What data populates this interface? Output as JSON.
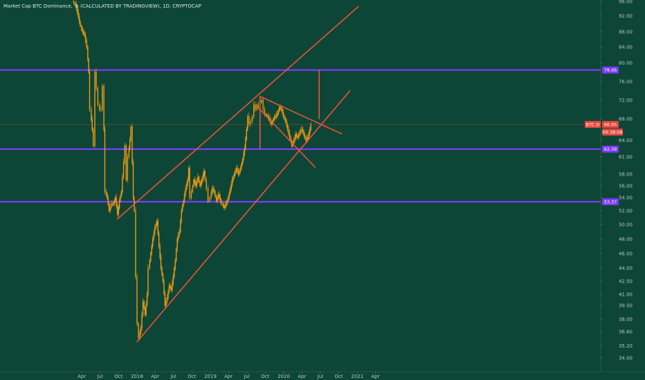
{
  "chart_data": {
    "type": "candlestick",
    "title": "Market Cap BTC Dominance, % (CALCULATED BY TRADINGVIEW), 1D, CRYPTOCAP",
    "symbol": "BTC.D",
    "last_value": "66.95",
    "countdown": "09:38:08",
    "grid": false,
    "colors": {
      "background": "#0d4636",
      "candles": "#f39c12",
      "trendlines": "#f0523a",
      "levels": "#7b3bff",
      "last_price": "#e8473a",
      "axis_text": "#b9c4c0"
    },
    "y_axis": {
      "position": "right",
      "ticks": [
        "34.00",
        "35.20",
        "36.60",
        "38.00",
        "39.50",
        "41.00",
        "42.50",
        "44.00",
        "46.00",
        "48.00",
        "50.00",
        "52.00",
        "54.00",
        "56.00",
        "58.00",
        "61.00",
        "64.00",
        "68.00",
        "72.00",
        "76.00",
        "80.00",
        "84.00",
        "88.00",
        "92.00",
        "96.00"
      ]
    },
    "x_axis": {
      "ticks": [
        "Apr",
        "Jul",
        "Oct",
        "2018",
        "Apr",
        "Jul",
        "Oct",
        "2019",
        "Apr",
        "Jul",
        "Oct",
        "2020",
        "Apr",
        "Jul",
        "Oct",
        "2021",
        "Apr"
      ]
    },
    "horizontal_levels": [
      {
        "value": 78.46,
        "label": "78.46"
      },
      {
        "value": 62.39,
        "label": "62.39"
      },
      {
        "value": 53.37,
        "label": "53.37"
      }
    ],
    "series": [
      {
        "name": "BTC.D",
        "points": [
          [
            "2017-02-20",
            96.0
          ],
          [
            "2017-03-05",
            95.2
          ],
          [
            "2017-03-15",
            93.0
          ],
          [
            "2017-03-25",
            90.5
          ],
          [
            "2017-04-05",
            88.5
          ],
          [
            "2017-04-20",
            87.0
          ],
          [
            "2017-05-01",
            84.0
          ],
          [
            "2017-05-10",
            78.0
          ],
          [
            "2017-05-18",
            70.0
          ],
          [
            "2017-05-28",
            66.0
          ],
          [
            "2017-06-05",
            63.0
          ],
          [
            "2017-06-12",
            78.0
          ],
          [
            "2017-06-20",
            74.5
          ],
          [
            "2017-06-28",
            71.0
          ],
          [
            "2017-07-05",
            70.0
          ],
          [
            "2017-07-12",
            70.0
          ],
          [
            "2017-07-20",
            75.0
          ],
          [
            "2017-07-25",
            66.0
          ],
          [
            "2017-08-01",
            55.0
          ],
          [
            "2017-08-10",
            54.0
          ],
          [
            "2017-08-20",
            52.0
          ],
          [
            "2017-09-01",
            53.0
          ],
          [
            "2017-09-10",
            53.0
          ],
          [
            "2017-09-20",
            54.0
          ],
          [
            "2017-10-01",
            51.5
          ],
          [
            "2017-10-10",
            53.5
          ],
          [
            "2017-10-20",
            55.0
          ],
          [
            "2017-11-01",
            60.0
          ],
          [
            "2017-11-08",
            63.0
          ],
          [
            "2017-11-15",
            57.0
          ],
          [
            "2017-11-22",
            61.0
          ],
          [
            "2017-12-01",
            64.0
          ],
          [
            "2017-12-08",
            66.5
          ],
          [
            "2017-12-13",
            60.0
          ],
          [
            "2017-12-18",
            54.0
          ],
          [
            "2017-12-25",
            52.0
          ],
          [
            "2018-01-01",
            43.0
          ],
          [
            "2018-01-08",
            37.5
          ],
          [
            "2018-01-15",
            36.0
          ],
          [
            "2018-01-25",
            37.0
          ],
          [
            "2018-02-05",
            40.0
          ],
          [
            "2018-02-15",
            38.5
          ],
          [
            "2018-02-25",
            41.0
          ],
          [
            "2018-03-05",
            44.0
          ],
          [
            "2018-03-15",
            46.0
          ],
          [
            "2018-03-25",
            48.0
          ],
          [
            "2018-04-05",
            49.5
          ],
          [
            "2018-04-15",
            50.5
          ],
          [
            "2018-04-25",
            47.0
          ],
          [
            "2018-05-05",
            44.0
          ],
          [
            "2018-05-15",
            42.5
          ],
          [
            "2018-05-25",
            39.5
          ],
          [
            "2018-06-05",
            40.5
          ],
          [
            "2018-06-15",
            42.0
          ],
          [
            "2018-06-25",
            41.5
          ],
          [
            "2018-07-05",
            43.0
          ],
          [
            "2018-07-15",
            45.0
          ],
          [
            "2018-07-25",
            48.0
          ],
          [
            "2018-08-05",
            49.0
          ],
          [
            "2018-08-15",
            52.0
          ],
          [
            "2018-08-25",
            53.5
          ],
          [
            "2018-09-05",
            55.5
          ],
          [
            "2018-09-15",
            57.0
          ],
          [
            "2018-09-20",
            59.0
          ],
          [
            "2018-09-28",
            54.0
          ],
          [
            "2018-10-05",
            55.0
          ],
          [
            "2018-10-15",
            57.0
          ],
          [
            "2018-10-25",
            56.0
          ],
          [
            "2018-11-05",
            57.5
          ],
          [
            "2018-11-15",
            56.0
          ],
          [
            "2018-11-25",
            57.0
          ],
          [
            "2018-12-05",
            58.5
          ],
          [
            "2018-12-12",
            57.0
          ],
          [
            "2018-12-20",
            55.5
          ],
          [
            "2018-12-28",
            53.5
          ],
          [
            "2019-01-05",
            54.0
          ],
          [
            "2019-01-15",
            55.5
          ],
          [
            "2019-01-25",
            55.0
          ],
          [
            "2019-02-05",
            53.5
          ],
          [
            "2019-02-15",
            54.5
          ],
          [
            "2019-02-25",
            53.5
          ],
          [
            "2019-03-05",
            53.0
          ],
          [
            "2019-03-15",
            52.5
          ],
          [
            "2019-03-25",
            53.0
          ],
          [
            "2019-04-05",
            54.0
          ],
          [
            "2019-04-15",
            55.5
          ],
          [
            "2019-04-25",
            57.0
          ],
          [
            "2019-05-05",
            58.0
          ],
          [
            "2019-05-15",
            59.0
          ],
          [
            "2019-05-25",
            58.0
          ],
          [
            "2019-06-05",
            59.0
          ],
          [
            "2019-06-15",
            60.5
          ],
          [
            "2019-06-25",
            62.5
          ],
          [
            "2019-07-05",
            66.0
          ],
          [
            "2019-07-12",
            68.5
          ],
          [
            "2019-07-20",
            67.0
          ],
          [
            "2019-07-28",
            67.5
          ],
          [
            "2019-08-05",
            68.5
          ],
          [
            "2019-08-12",
            71.0
          ],
          [
            "2019-08-20",
            70.0
          ],
          [
            "2019-08-28",
            71.0
          ],
          [
            "2019-09-05",
            70.5
          ],
          [
            "2019-09-12",
            71.5
          ],
          [
            "2019-09-20",
            72.0
          ],
          [
            "2019-09-28",
            70.0
          ],
          [
            "2019-10-05",
            69.0
          ],
          [
            "2019-10-15",
            68.5
          ],
          [
            "2019-10-25",
            68.0
          ],
          [
            "2019-11-05",
            67.0
          ],
          [
            "2019-11-15",
            68.0
          ],
          [
            "2019-11-25",
            68.5
          ],
          [
            "2019-12-05",
            69.0
          ],
          [
            "2019-12-15",
            70.5
          ],
          [
            "2019-12-25",
            70.0
          ],
          [
            "2020-01-05",
            68.5
          ],
          [
            "2020-01-15",
            67.5
          ],
          [
            "2020-01-25",
            66.0
          ],
          [
            "2020-02-05",
            64.5
          ],
          [
            "2020-02-15",
            63.0
          ],
          [
            "2020-02-25",
            64.0
          ],
          [
            "2020-03-05",
            65.0
          ],
          [
            "2020-03-15",
            64.5
          ],
          [
            "2020-03-25",
            65.5
          ],
          [
            "2020-04-05",
            66.0
          ],
          [
            "2020-04-15",
            65.0
          ],
          [
            "2020-04-25",
            64.0
          ],
          [
            "2020-05-05",
            64.5
          ],
          [
            "2020-05-15",
            66.0
          ],
          [
            "2020-05-22",
            66.95
          ]
        ]
      }
    ],
    "trendlines": [
      {
        "from": [
          "2017-09-25",
          50.8
        ],
        "to": [
          "2021-01-05",
          94.5
        ]
      },
      {
        "from": [
          "2018-01-01",
          35.6
        ],
        "to": [
          "2020-11-25",
          74.0
        ]
      },
      {
        "from": [
          "2019-09-05",
          72.8
        ],
        "to": [
          "2020-10-15",
          65.2
        ]
      },
      {
        "from": [
          "2019-08-25",
          70.5
        ],
        "to": [
          "2020-06-05",
          59.2
        ]
      },
      {
        "from": [
          "2019-09-05",
          72.8
        ],
        "to": [
          "2019-09-05",
          62.5
        ]
      },
      {
        "from": [
          "2020-06-25",
          78.46
        ],
        "to": [
          "2020-06-25",
          68.0
        ]
      }
    ]
  }
}
